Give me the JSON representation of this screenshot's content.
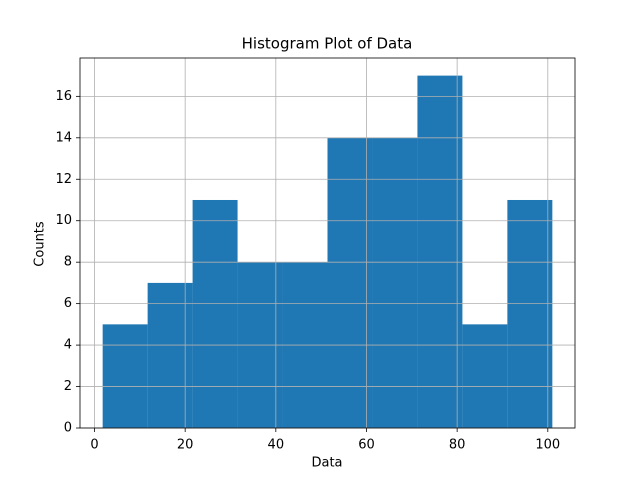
{
  "chart_data": {
    "type": "histogram",
    "title": "Histogram Plot of Data",
    "x_label": "Data",
    "y_label": "Counts",
    "bins": [
      1.8,
      11.72,
      21.64,
      31.56,
      41.48,
      51.4,
      61.32,
      71.24,
      81.16,
      91.08,
      101.0
    ],
    "values": [
      5,
      7,
      11,
      8,
      8,
      14,
      14,
      17,
      5,
      11
    ],
    "color": "#1f77b4",
    "xlim": [
      -3.2,
      106.0
    ],
    "xticks": [
      0,
      20,
      40,
      60,
      80,
      100
    ],
    "ylim": [
      0,
      17.85
    ],
    "yticks": [
      0,
      2,
      4,
      6,
      8,
      10,
      12,
      14,
      16
    ],
    "grid": true
  }
}
